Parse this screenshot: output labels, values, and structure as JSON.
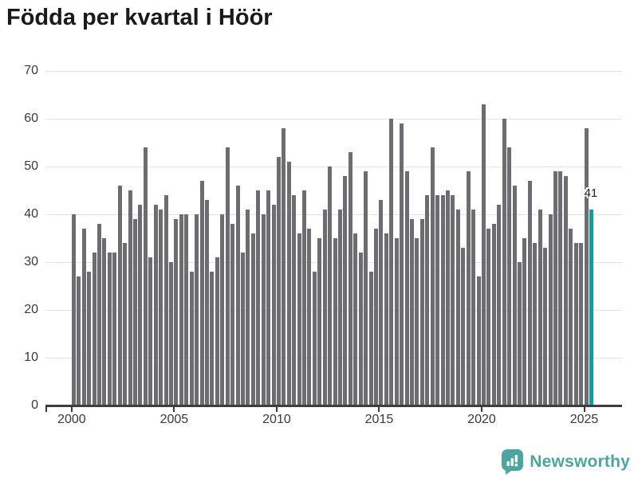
{
  "title": "Födda per kvartal i Höör",
  "colors": {
    "bar": "#6d6d71",
    "highlight": "#0f9e9e",
    "grid": "#e4e4e4",
    "axis": "#3d3d3d",
    "tick_label": "#3a3a3a",
    "title": "#1a1a18",
    "brand": "#4ba6a1",
    "annotation": "#222222"
  },
  "chart_data": {
    "type": "bar",
    "title": "Födda per kvartal i Höör",
    "x_start": "2000 Q1",
    "x_end": "2025 Q2",
    "x_frequency": "quarterly",
    "values": [
      40,
      27,
      37,
      28,
      32,
      38,
      35,
      32,
      32,
      46,
      34,
      45,
      39,
      42,
      54,
      31,
      42,
      41,
      44,
      30,
      39,
      40,
      40,
      28,
      40,
      47,
      43,
      28,
      31,
      40,
      54,
      38,
      46,
      32,
      41,
      36,
      45,
      40,
      45,
      42,
      52,
      58,
      51,
      44,
      36,
      45,
      37,
      28,
      35,
      41,
      50,
      35,
      41,
      48,
      53,
      36,
      32,
      49,
      28,
      37,
      43,
      36,
      60,
      35,
      59,
      49,
      39,
      35,
      39,
      44,
      54,
      44,
      44,
      45,
      44,
      41,
      33,
      49,
      41,
      27,
      63,
      37,
      38,
      42,
      60,
      54,
      46,
      30,
      35,
      47,
      34,
      41,
      33,
      40,
      49,
      49,
      48,
      37,
      34,
      34,
      58,
      41
    ],
    "xticks": [
      "2000",
      "2005",
      "2010",
      "2015",
      "2020",
      "2025"
    ],
    "yticks": [
      0,
      10,
      20,
      30,
      40,
      50,
      60,
      70
    ],
    "ylim": [
      0,
      70
    ],
    "grid": "horizontal",
    "legend": "none",
    "highlight": {
      "index": 101,
      "value": 41,
      "label": "41"
    }
  },
  "footer": {
    "brand": "Newsworthy"
  }
}
